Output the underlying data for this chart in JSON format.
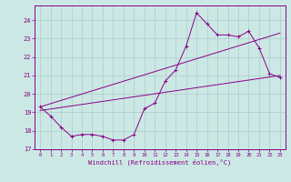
{
  "xlabel": "Windchill (Refroidissement éolien,°C)",
  "bg_color": "#cce8e4",
  "grid_color": "#aacccc",
  "line_color": "#880088",
  "xlim": [
    -0.5,
    23.5
  ],
  "ylim": [
    17.0,
    24.8
  ],
  "yticks": [
    17,
    18,
    19,
    20,
    21,
    22,
    23,
    24
  ],
  "xticks": [
    0,
    1,
    2,
    3,
    4,
    5,
    6,
    7,
    8,
    9,
    10,
    11,
    12,
    13,
    14,
    15,
    16,
    17,
    18,
    19,
    20,
    21,
    22,
    23
  ],
  "line1_x": [
    0,
    1,
    2,
    3,
    4,
    5,
    6,
    7,
    8,
    9,
    10,
    11,
    12,
    13,
    14,
    15,
    16,
    17,
    18,
    19,
    20,
    21,
    22,
    23
  ],
  "line1_y": [
    19.3,
    18.8,
    18.2,
    17.7,
    17.8,
    17.8,
    17.7,
    17.5,
    17.5,
    17.8,
    19.2,
    19.5,
    20.7,
    21.3,
    22.6,
    24.4,
    23.8,
    23.2,
    23.2,
    23.1,
    23.4,
    22.5,
    21.1,
    20.9
  ],
  "line2_x": [
    0,
    23
  ],
  "line2_y": [
    19.1,
    21.0
  ],
  "line3_x": [
    0,
    23
  ],
  "line3_y": [
    19.3,
    23.3
  ]
}
